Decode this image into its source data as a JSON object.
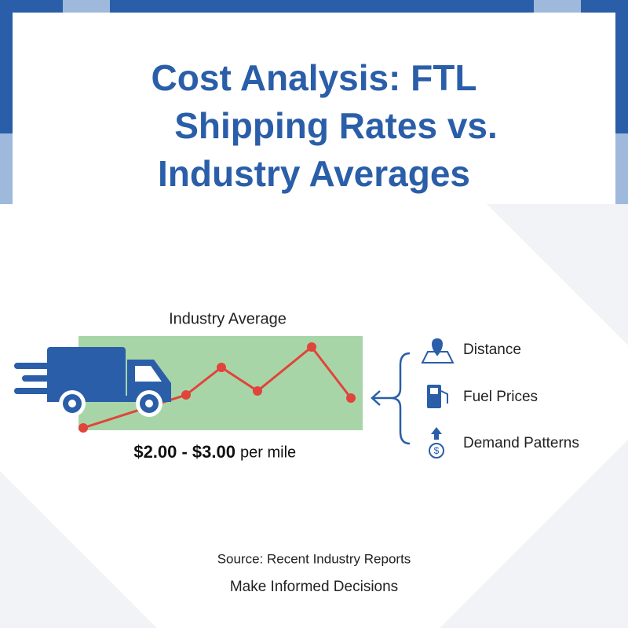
{
  "header": {
    "title_lines": [
      "Cost Analysis: FTL",
      "Shipping Rates vs.",
      "Industry Averages"
    ]
  },
  "panel": {
    "band_label": "Industry Average",
    "range": "$2.00 - $3.00",
    "unit": "per mile"
  },
  "factors": [
    "Distance",
    "Fuel Prices",
    "Demand Patterns"
  ],
  "footer": {
    "source": "Source: Recent Industry Reports",
    "tagline": "Make Informed Decisions"
  }
}
